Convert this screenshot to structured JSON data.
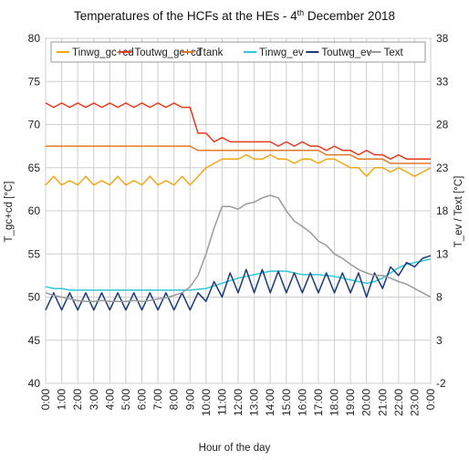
{
  "chart_data": {
    "type": "line",
    "title": "Temperatures of the HCFs at the HEs - 4",
    "title_sup": "th",
    "title_end": " December 2018",
    "xlabel": "Hour of the day",
    "ylabel_left": "T_gc+cd [°C]",
    "ylabel_right": "T_ev / Text [°C]",
    "ylim_left": [
      40,
      80
    ],
    "ylim_right": [
      -2,
      38
    ],
    "yticks_left": [
      40,
      45,
      50,
      55,
      60,
      65,
      70,
      75,
      80
    ],
    "yticks_right": [
      -2,
      3,
      8,
      13,
      18,
      23,
      28,
      33,
      38
    ],
    "xlim": [
      0,
      24
    ],
    "xticks": [
      "0:00",
      "1:00",
      "2:00",
      "3:00",
      "4:00",
      "5:00",
      "6:00",
      "7:00",
      "8:00",
      "9:00",
      "10:00",
      "11:00",
      "12:00",
      "13:00",
      "14:00",
      "15:00",
      "16:00",
      "17:00",
      "18:00",
      "19:00",
      "20:00",
      "21:00",
      "22:00",
      "23:00",
      "0:00"
    ],
    "grid": true,
    "legend_position": "top",
    "series": [
      {
        "name": "Tinwg_gc+cd",
        "color": "#f0a818",
        "axis": "left",
        "x": [
          0,
          0.5,
          1,
          1.5,
          2,
          2.5,
          3,
          3.5,
          4,
          4.5,
          5,
          5.5,
          6,
          6.5,
          7,
          7.5,
          8,
          8.5,
          9,
          9.5,
          10,
          10.5,
          11,
          11.5,
          12,
          12.5,
          13,
          13.5,
          14,
          14.5,
          15,
          15.5,
          16,
          16.5,
          17,
          17.5,
          18,
          18.5,
          19,
          19.5,
          20,
          20.5,
          21,
          21.5,
          22,
          22.5,
          23,
          23.5,
          24
        ],
        "values": [
          63,
          64,
          63,
          63.5,
          63,
          64,
          63,
          63.5,
          63,
          64,
          63,
          63.5,
          63,
          64,
          63,
          63.5,
          63,
          64,
          63,
          64,
          65,
          65.5,
          66,
          66,
          66,
          66.5,
          66,
          66,
          66.5,
          66,
          66,
          65.5,
          66,
          66,
          65.5,
          66,
          66,
          65.5,
          65,
          65,
          64,
          65,
          65,
          64.5,
          65,
          64.5,
          64,
          64.5,
          65
        ]
      },
      {
        "name": "Toutwg_gc+cd",
        "color": "#e63a1e",
        "axis": "left",
        "x": [
          0,
          0.5,
          1,
          1.5,
          2,
          2.5,
          3,
          3.5,
          4,
          4.5,
          5,
          5.5,
          6,
          6.5,
          7,
          7.5,
          8,
          8.5,
          9,
          9.5,
          10,
          10.5,
          11,
          11.5,
          12,
          12.5,
          13,
          13.5,
          14,
          14.5,
          15,
          15.5,
          16,
          16.5,
          17,
          17.5,
          18,
          18.5,
          19,
          19.5,
          20,
          20.5,
          21,
          21.5,
          22,
          22.5,
          23,
          23.5,
          24
        ],
        "values": [
          72.5,
          72,
          72.5,
          72,
          72.5,
          72,
          72.5,
          72,
          72.5,
          72,
          72.5,
          72,
          72.5,
          72,
          72.5,
          72,
          72.5,
          72,
          72,
          69,
          69,
          68,
          68.5,
          68,
          68,
          68,
          68,
          68,
          68,
          67.5,
          68,
          67.5,
          68,
          67.5,
          67.5,
          67,
          67.5,
          67,
          67,
          66.5,
          67,
          66.5,
          66.5,
          66,
          66.5,
          66,
          66,
          66,
          66
        ]
      },
      {
        "name": "Ttank",
        "color": "#e07a28",
        "axis": "left",
        "x": [
          0,
          0.5,
          1,
          1.5,
          2,
          2.5,
          3,
          3.5,
          4,
          4.5,
          5,
          5.5,
          6,
          6.5,
          7,
          7.5,
          8,
          8.5,
          9,
          9.5,
          10,
          10.5,
          11,
          11.5,
          12,
          12.5,
          13,
          13.5,
          14,
          14.5,
          15,
          15.5,
          16,
          16.5,
          17,
          17.5,
          18,
          18.5,
          19,
          19.5,
          20,
          20.5,
          21,
          21.5,
          22,
          22.5,
          23,
          23.5,
          24
        ],
        "values": [
          67.5,
          67.5,
          67.5,
          67.5,
          67.5,
          67.5,
          67.5,
          67.5,
          67.5,
          67.5,
          67.5,
          67.5,
          67.5,
          67.5,
          67.5,
          67.5,
          67.5,
          67.5,
          67.5,
          67,
          67,
          67,
          67,
          67,
          67,
          67,
          67,
          67,
          67,
          67,
          67,
          67,
          67,
          67,
          67,
          66.5,
          66.5,
          66.5,
          66.5,
          66,
          66,
          66,
          66,
          65.5,
          65.5,
          65.5,
          65.5,
          65.5,
          65.5
        ]
      },
      {
        "name": "Tinwg_ev",
        "color": "#2ec8dc",
        "axis": "right",
        "x": [
          0,
          0.5,
          1,
          1.5,
          2,
          2.5,
          3,
          3.5,
          4,
          4.5,
          5,
          5.5,
          6,
          6.5,
          7,
          7.5,
          8,
          8.5,
          9,
          9.5,
          10,
          10.5,
          11,
          11.5,
          12,
          12.5,
          13,
          13.5,
          14,
          14.5,
          15,
          15.5,
          16,
          16.5,
          17,
          17.5,
          18,
          18.5,
          19,
          19.5,
          20,
          20.5,
          21,
          21.5,
          22,
          22.5,
          23,
          23.5,
          24
        ],
        "values": [
          9.2,
          9.0,
          9.0,
          8.8,
          8.8,
          8.8,
          8.8,
          8.8,
          8.8,
          8.8,
          8.8,
          8.8,
          8.8,
          8.8,
          8.8,
          8.8,
          8.8,
          8.8,
          8.8,
          8.9,
          9.0,
          9.3,
          9.6,
          9.9,
          10.2,
          10.4,
          10.6,
          10.8,
          11.0,
          11.0,
          11.0,
          10.8,
          10.6,
          10.6,
          10.6,
          10.5,
          10.4,
          10.2,
          10.0,
          9.8,
          9.6,
          9.8,
          10.2,
          10.8,
          11.4,
          11.8,
          12.0,
          12.2,
          12.4
        ]
      },
      {
        "name": "Toutwg_ev",
        "color": "#1a3a78",
        "axis": "right",
        "x": [
          0,
          0.5,
          1,
          1.5,
          2,
          2.5,
          3,
          3.5,
          4,
          4.5,
          5,
          5.5,
          6,
          6.5,
          7,
          7.5,
          8,
          8.5,
          9,
          9.5,
          10,
          10.5,
          11,
          11.5,
          12,
          12.5,
          13,
          13.5,
          14,
          14.5,
          15,
          15.5,
          16,
          16.5,
          17,
          17.5,
          18,
          18.5,
          19,
          19.5,
          20,
          20.5,
          21,
          21.5,
          22,
          22.5,
          23,
          23.5,
          24
        ],
        "values": [
          6.5,
          8.5,
          6.5,
          8.5,
          6.5,
          8.5,
          6.5,
          8.5,
          6.5,
          8.5,
          6.5,
          8.5,
          6.5,
          8.5,
          6.5,
          8.5,
          6.5,
          8.5,
          6.5,
          8.5,
          7.5,
          9.8,
          8.0,
          10.8,
          8.5,
          11.2,
          8.5,
          11.2,
          8.5,
          11.0,
          8.5,
          10.8,
          8.5,
          10.8,
          8.5,
          10.8,
          8.5,
          10.8,
          8.5,
          10.8,
          8.0,
          10.8,
          9.0,
          11.5,
          10.5,
          12.0,
          11.5,
          12.5,
          12.8
        ]
      },
      {
        "name": "Text",
        "color": "#9a9a9a",
        "axis": "right",
        "x": [
          0,
          0.5,
          1,
          1.5,
          2,
          2.5,
          3,
          3.5,
          4,
          4.5,
          5,
          5.5,
          6,
          6.5,
          7,
          7.5,
          8,
          8.5,
          9,
          9.5,
          10,
          10.5,
          11,
          11.5,
          12,
          12.5,
          13,
          13.5,
          14,
          14.5,
          15,
          15.5,
          16,
          16.5,
          17,
          17.5,
          18,
          18.5,
          19,
          19.5,
          20,
          20.5,
          21,
          21.5,
          22,
          22.5,
          23,
          23.5,
          24
        ],
        "values": [
          8.5,
          8.2,
          8.0,
          7.8,
          7.6,
          7.5,
          7.5,
          7.6,
          7.5,
          7.5,
          7.5,
          7.6,
          7.5,
          7.6,
          7.8,
          7.9,
          8.2,
          8.5,
          9.2,
          10.5,
          13.0,
          16.0,
          18.5,
          18.5,
          18.2,
          18.8,
          19.0,
          19.5,
          19.8,
          19.5,
          18.0,
          16.8,
          16.2,
          15.5,
          14.5,
          14.0,
          13.0,
          12.5,
          11.8,
          11.2,
          10.8,
          10.5,
          10.5,
          10.2,
          9.8,
          9.5,
          9.0,
          8.5,
          8.0
        ]
      }
    ]
  }
}
